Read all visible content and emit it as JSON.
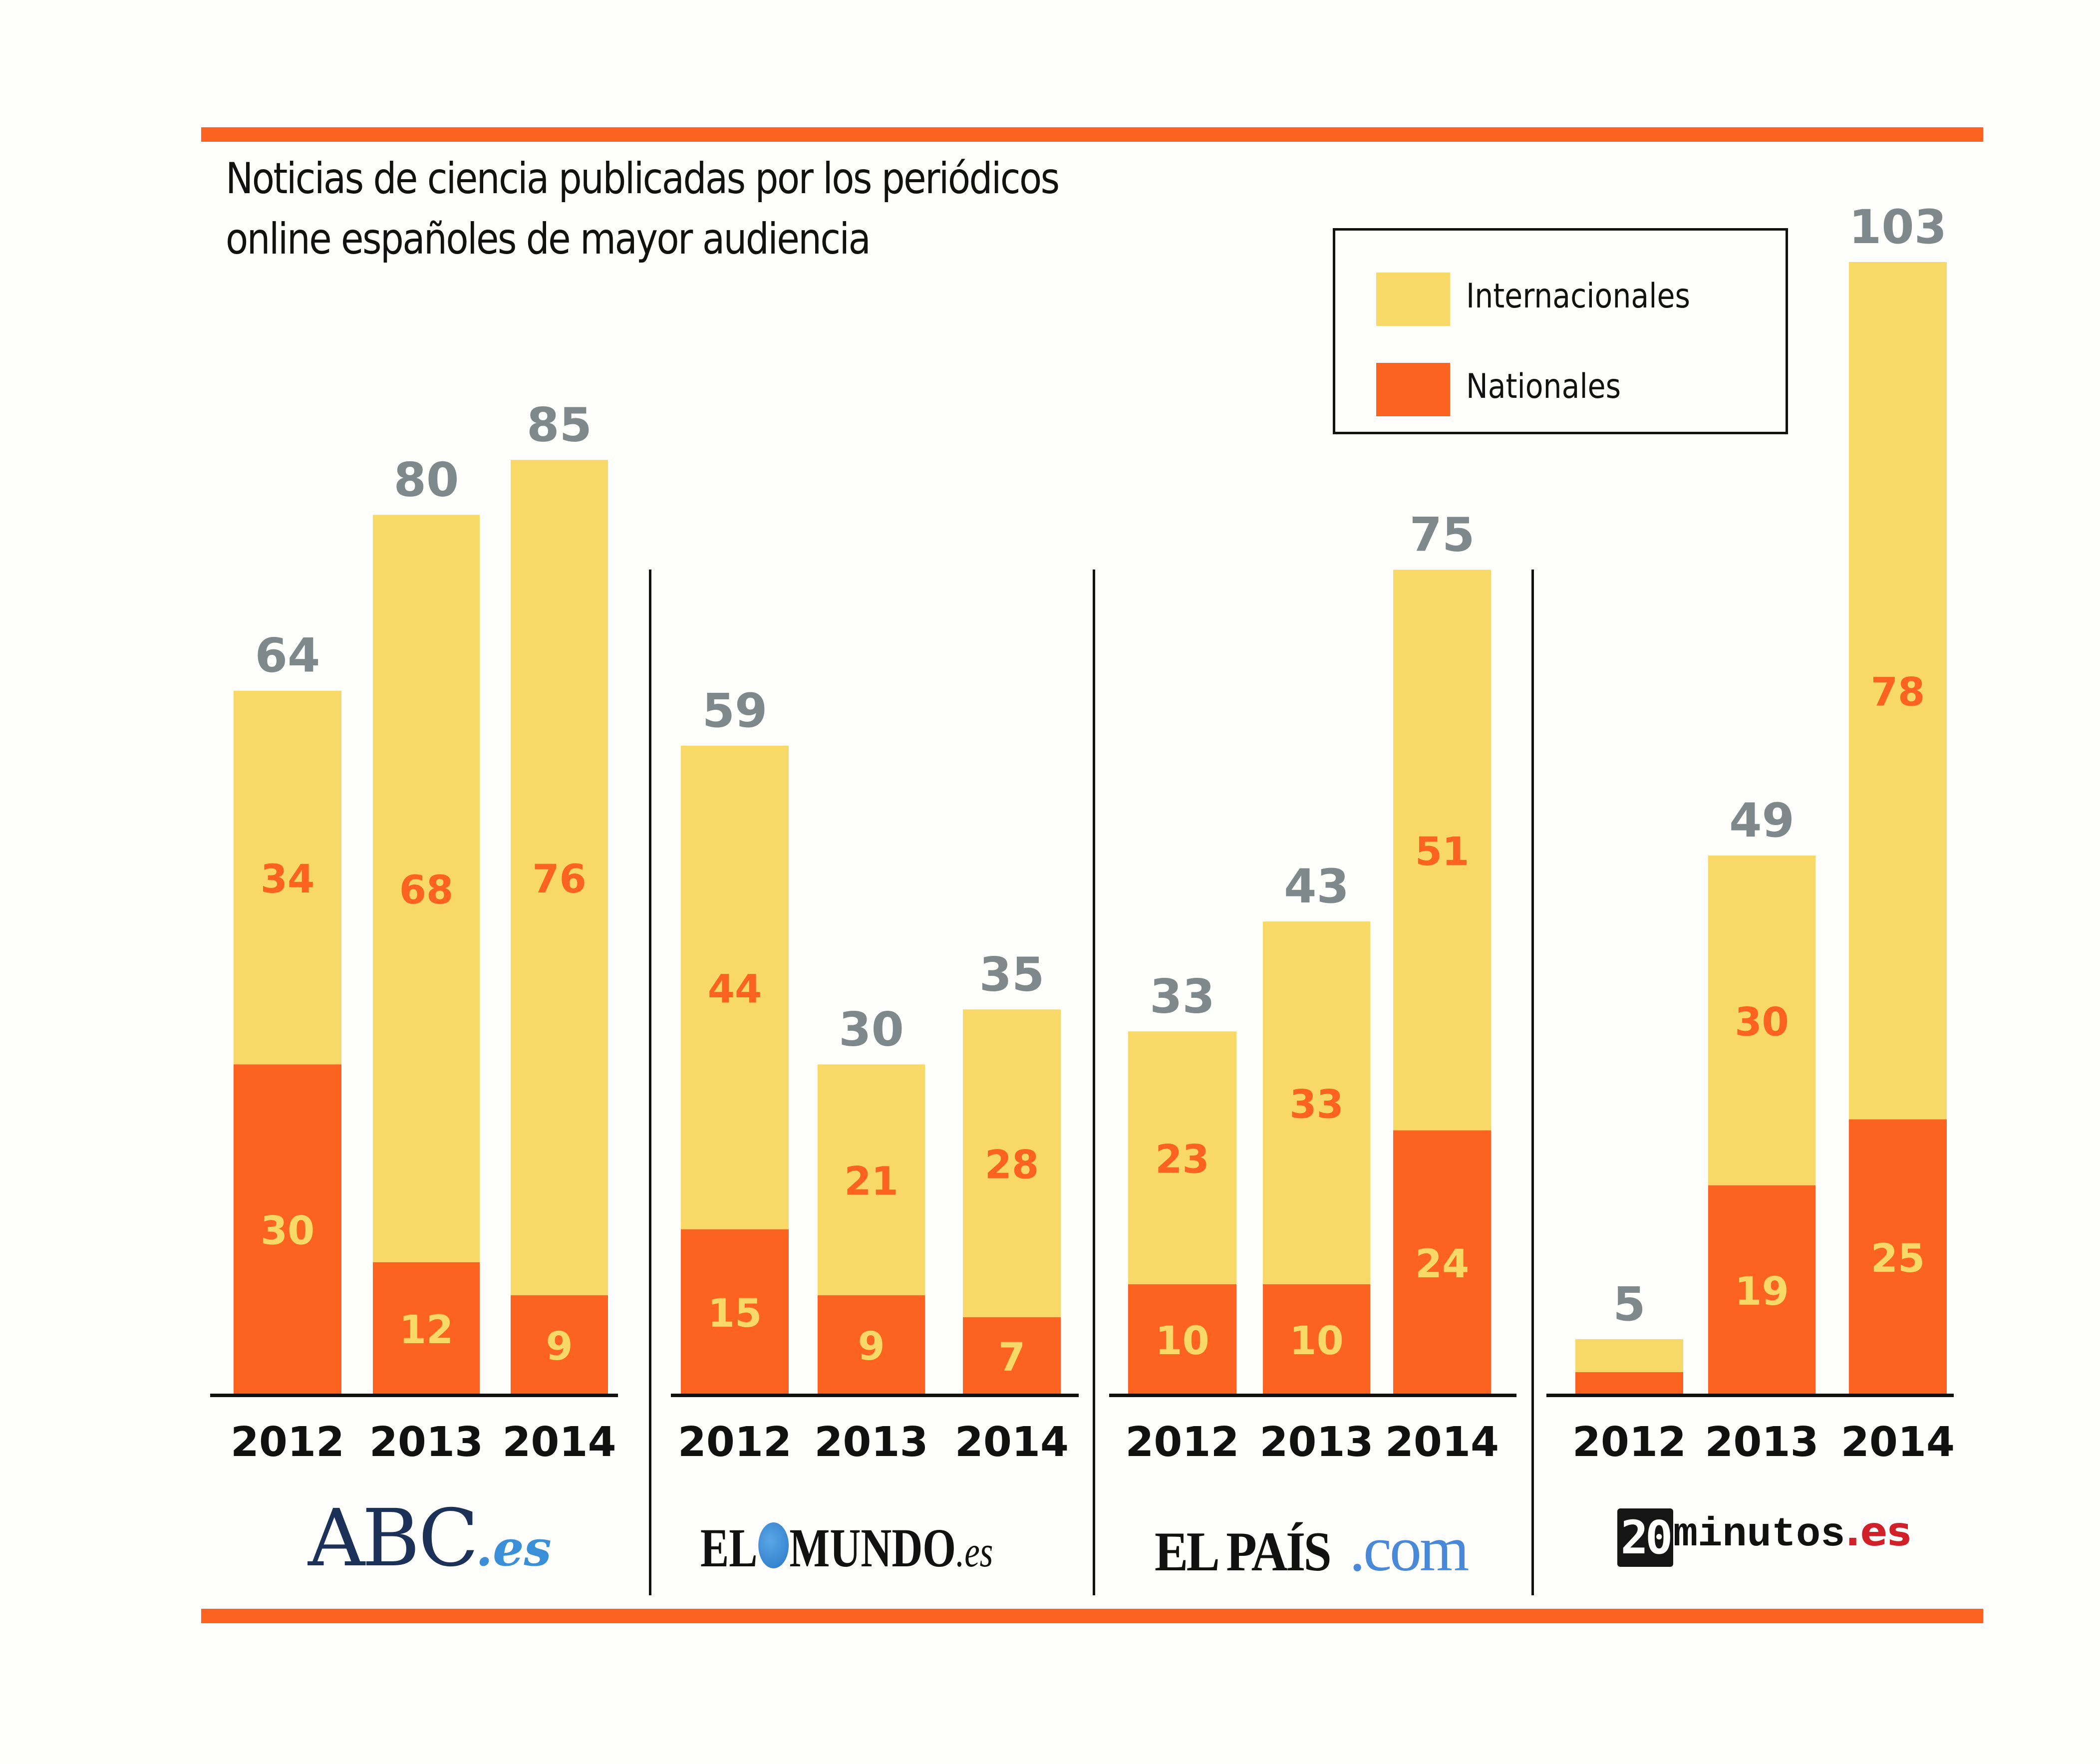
{
  "colors": {
    "accent_rule": "#fc6220",
    "internacionales": "#f8d968",
    "nacionales": "#fc6220",
    "total_label": "#7f898b",
    "inter_label": "#fc6220",
    "nat_label": "#f8d968",
    "axis": "#111111"
  },
  "chart_data": {
    "type": "bar",
    "stacked": true,
    "title": "Noticias de ciencia publicadas por los periódicos online españoles de mayor audiencia",
    "title_lines": [
      "Noticias de ciencia publicadas por los periódicos",
      "online españoles de mayor audiencia"
    ],
    "xlabel": "",
    "ylabel": "",
    "ylim": [
      0,
      103
    ],
    "grid": false,
    "legend_position": "top-right",
    "legend": [
      {
        "name": "Internacionales",
        "key": "internacionales"
      },
      {
        "name": "Nationales",
        "key": "nacionales"
      }
    ],
    "categories": [
      "2012",
      "2013",
      "2014"
    ],
    "groups": [
      {
        "name": "ABC.es",
        "logo": {
          "main": "ABC",
          "suffix": ".es"
        },
        "bars": [
          {
            "year": "2012",
            "total": 64,
            "internacionales": 34,
            "nacionales": 30
          },
          {
            "year": "2013",
            "total": 80,
            "internacionales": 68,
            "nacionales": 12
          },
          {
            "year": "2014",
            "total": 85,
            "internacionales": 76,
            "nacionales": 9
          }
        ]
      },
      {
        "name": "EL MUNDO.es",
        "logo": {
          "part1": "EL",
          "part2": "MUNDO",
          "suffix": ".es"
        },
        "bars": [
          {
            "year": "2012",
            "total": 59,
            "internacionales": 44,
            "nacionales": 15
          },
          {
            "year": "2013",
            "total": 30,
            "internacionales": 21,
            "nacionales": 9
          },
          {
            "year": "2014",
            "total": 35,
            "internacionales": 28,
            "nacionales": 7
          }
        ]
      },
      {
        "name": "EL PAÍS.com",
        "logo": {
          "main": "EL PAÍS",
          "suffix": ".com"
        },
        "bars": [
          {
            "year": "2012",
            "total": 33,
            "internacionales": 23,
            "nacionales": 10
          },
          {
            "year": "2013",
            "total": 43,
            "internacionales": 33,
            "nacionales": 10
          },
          {
            "year": "2014",
            "total": 75,
            "internacionales": 51,
            "nacionales": 24
          }
        ]
      },
      {
        "name": "20minutos.es",
        "logo": {
          "box": "20",
          "main": "minutos",
          "suffix": ".es"
        },
        "bars": [
          {
            "year": "2012",
            "total": 5,
            "internacionales": 3,
            "nacionales": 2,
            "segment_labels": false
          },
          {
            "year": "2013",
            "total": 49,
            "internacionales": 30,
            "nacionales": 19
          },
          {
            "year": "2014",
            "total": 103,
            "internacionales": 78,
            "nacionales": 25
          }
        ]
      }
    ]
  }
}
